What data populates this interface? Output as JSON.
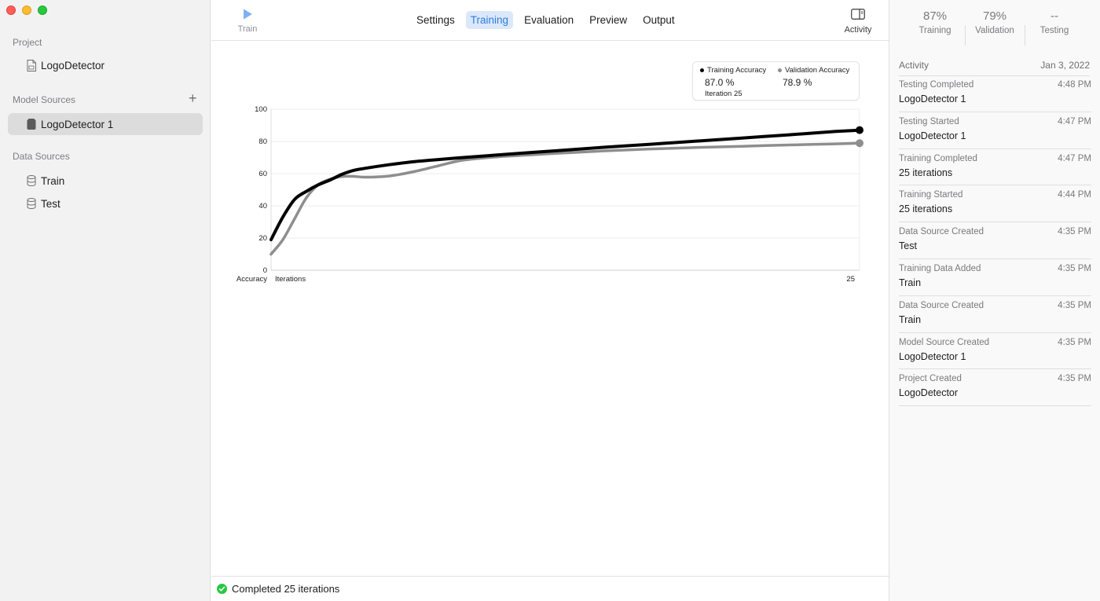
{
  "sidebar": {
    "project_section": "Project",
    "project_item": "LogoDetector",
    "model_section": "Model Sources",
    "model_item": "LogoDetector 1",
    "data_section": "Data Sources",
    "data_items": [
      "Train",
      "Test"
    ]
  },
  "toolbar": {
    "train_label": "Train",
    "tabs": [
      "Settings",
      "Training",
      "Evaluation",
      "Preview",
      "Output"
    ],
    "active_tab": "Training",
    "activity_label": "Activity"
  },
  "legend": {
    "training_title": "Training Accuracy",
    "training_value": "87.0 %",
    "iteration": "Iteration 25",
    "validation_title": "Validation Accuracy",
    "validation_value": "78.9 %"
  },
  "chart_data": {
    "type": "line",
    "xlabel": "Iterations",
    "ylabel": "Accuracy",
    "xlim": [
      0,
      25
    ],
    "ylim": [
      0,
      100
    ],
    "yticks": [
      0,
      20,
      40,
      60,
      80,
      100
    ],
    "x_end_label": "25",
    "grid": true,
    "series": [
      {
        "name": "Training Accuracy",
        "color": "#000000",
        "x": [
          0,
          0.5,
          1,
          1.5,
          2,
          2.5,
          3,
          3.5,
          4,
          5,
          6,
          7,
          8,
          10,
          12,
          14,
          16,
          18,
          20,
          22,
          24,
          25
        ],
        "values": [
          19,
          33,
          44,
          49,
          53,
          56,
          59.5,
          62,
          63.3,
          65.5,
          67.3,
          68.6,
          69.8,
          72,
          74.1,
          76.2,
          78.1,
          80.1,
          82.1,
          84.1,
          86.2,
          87.0
        ]
      },
      {
        "name": "Validation Accuracy",
        "color": "#8e8e8e",
        "x": [
          0,
          0.5,
          1,
          1.5,
          2,
          2.5,
          3,
          3.5,
          4,
          5,
          6,
          7,
          8,
          9,
          10,
          12,
          14,
          16,
          18,
          20,
          22,
          24,
          25
        ],
        "values": [
          10,
          19,
          32,
          45,
          53,
          56.5,
          58.2,
          58.3,
          57.8,
          58.5,
          61,
          64.5,
          68,
          69.7,
          70.8,
          72.5,
          74,
          75.2,
          76.2,
          77,
          77.8,
          78.5,
          78.9
        ]
      }
    ]
  },
  "statusbar": {
    "text": "Completed 25 iterations"
  },
  "metrics": [
    {
      "value": "87%",
      "label": "Training"
    },
    {
      "value": "79%",
      "label": "Validation"
    },
    {
      "value": "--",
      "label": "Testing"
    }
  ],
  "activity": {
    "title": "Activity",
    "date": "Jan 3, 2022",
    "items": [
      {
        "event": "Testing Completed",
        "time": "4:48 PM",
        "detail": "LogoDetector 1"
      },
      {
        "event": "Testing Started",
        "time": "4:47 PM",
        "detail": "LogoDetector 1"
      },
      {
        "event": "Training Completed",
        "time": "4:47 PM",
        "detail": "25 iterations"
      },
      {
        "event": "Training Started",
        "time": "4:44 PM",
        "detail": "25 iterations"
      },
      {
        "event": "Data Source Created",
        "time": "4:35 PM",
        "detail": "Test"
      },
      {
        "event": "Training Data Added",
        "time": "4:35 PM",
        "detail": "Train"
      },
      {
        "event": "Data Source Created",
        "time": "4:35 PM",
        "detail": "Train"
      },
      {
        "event": "Model Source Created",
        "time": "4:35 PM",
        "detail": "LogoDetector 1"
      },
      {
        "event": "Project Created",
        "time": "4:35 PM",
        "detail": "LogoDetector"
      }
    ]
  }
}
